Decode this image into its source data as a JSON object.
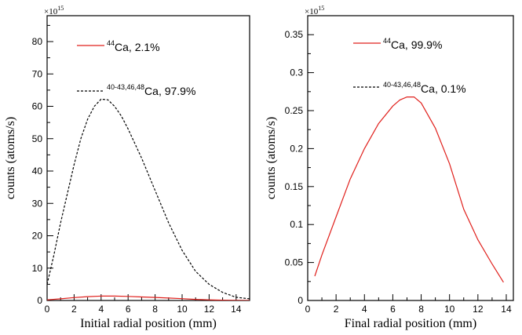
{
  "chart_data": [
    {
      "type": "line",
      "multiplier": {
        "base": "×10",
        "exponent": "15"
      },
      "xlabel": "Initial radial position (mm)",
      "ylabel": "counts (atoms/s)",
      "xlim": [
        0,
        15
      ],
      "ylim": [
        0,
        88
      ],
      "xticks": [
        0,
        2,
        4,
        6,
        8,
        10,
        12,
        14
      ],
      "yticks": [
        0,
        10,
        20,
        30,
        40,
        50,
        60,
        70,
        80
      ],
      "ytick_labels": [
        "0",
        "10",
        "20",
        "30",
        "40",
        "50",
        "60",
        "70",
        "80"
      ],
      "grid": false,
      "series": [
        {
          "legend_sup": "44",
          "legend_main": "Ca, 2.1%",
          "color": "#e0201c",
          "style": "solid",
          "x": [
            0,
            1,
            2,
            3,
            4,
            5,
            6,
            7,
            8,
            9,
            10,
            11,
            12,
            13,
            14,
            15
          ],
          "y": [
            0.2,
            0.5,
            0.9,
            1.2,
            1.35,
            1.35,
            1.25,
            1.1,
            0.95,
            0.75,
            0.55,
            0.35,
            0.2,
            0.1,
            0.05,
            0.0
          ]
        },
        {
          "legend_sup": "40-43,46,48",
          "legend_main": "Ca, 97.9%",
          "color": "#000000",
          "style": "dashed",
          "x": [
            0,
            0.5,
            1,
            1.5,
            2,
            2.5,
            3,
            3.5,
            4,
            4.5,
            5,
            5.5,
            6,
            7,
            8,
            9,
            10,
            11,
            12,
            13,
            14,
            15
          ],
          "y": [
            5,
            14,
            24,
            33,
            42,
            50,
            56,
            60,
            62.2,
            62,
            60,
            57,
            53,
            44,
            34,
            24,
            15.5,
            9,
            5,
            2.5,
            1,
            0.5
          ]
        }
      ]
    },
    {
      "type": "line",
      "multiplier": {
        "base": "×10",
        "exponent": "15"
      },
      "xlabel": "Final radial position (mm)",
      "ylabel": "counts (atoms/s)",
      "xlim": [
        0,
        14.5
      ],
      "ylim": [
        0,
        0.375
      ],
      "xticks": [
        0,
        2,
        4,
        6,
        8,
        10,
        12,
        14
      ],
      "yticks": [
        0,
        0.05,
        0.1,
        0.15,
        0.2,
        0.25,
        0.3,
        0.35
      ],
      "ytick_labels": [
        "0",
        "0.05",
        "0.1",
        "0.15",
        "0.2",
        "0.25",
        "0.3",
        "0.35"
      ],
      "grid": false,
      "series": [
        {
          "legend_sup": "44",
          "legend_main": "Ca, 99.9%",
          "color": "#e0201c",
          "style": "solid",
          "x": [
            0.5,
            1,
            2,
            3,
            4,
            5,
            6,
            6.5,
            7,
            7.5,
            8,
            9,
            10,
            11,
            12,
            13,
            13.8
          ],
          "y": [
            0.032,
            0.06,
            0.11,
            0.16,
            0.2,
            0.233,
            0.256,
            0.264,
            0.268,
            0.268,
            0.26,
            0.227,
            0.18,
            0.12,
            0.08,
            0.048,
            0.024
          ]
        },
        {
          "legend_sup": "40-43,46,48",
          "legend_main": "Ca, 0.1%",
          "color": "#000000",
          "style": "dashed",
          "x": [],
          "y": []
        }
      ]
    }
  ]
}
